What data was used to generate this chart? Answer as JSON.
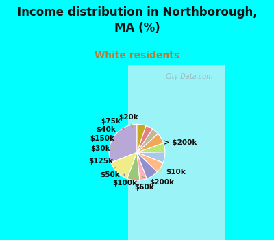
{
  "title": "Income distribution in Northborough,\nMA (%)",
  "subtitle": "White residents",
  "title_color": "#111111",
  "subtitle_color": "#c07830",
  "background_outer": "#00ffff",
  "background_inner_left": "#c8ecd8",
  "background_inner_right": "#e8f4f8",
  "labels": [
    "> $200k",
    "$10k",
    "$200k",
    "$60k",
    "$100k",
    "$50k",
    "$125k",
    "$30k",
    "$150k",
    "$40k",
    "$75k",
    "$20k"
  ],
  "values": [
    30,
    13,
    7,
    4,
    7,
    6,
    6,
    5,
    6,
    4,
    4,
    5
  ],
  "colors": [
    "#b8a8d8",
    "#f0ec88",
    "#98c878",
    "#ffb0b8",
    "#9090cc",
    "#ffb888",
    "#a8c8e8",
    "#b8e870",
    "#f0a858",
    "#c0b898",
    "#e08080",
    "#c8a820"
  ],
  "label_fontsize": 7.5,
  "wedge_edge_color": "#ffffff",
  "wedge_edge_width": 0.8
}
